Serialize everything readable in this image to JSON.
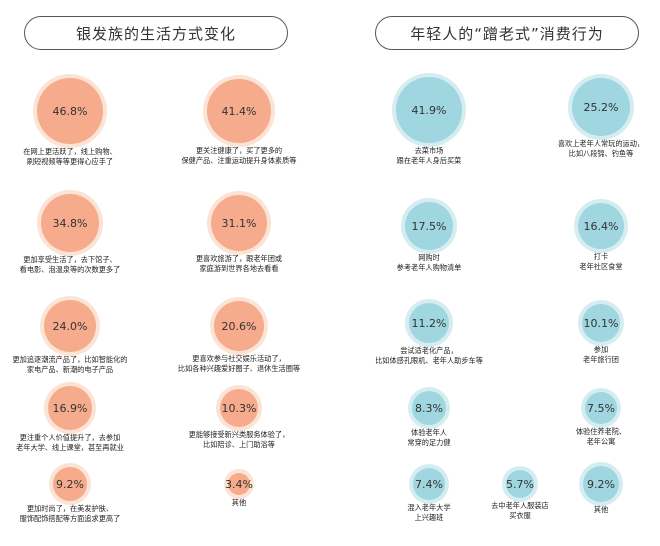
{
  "left_title": "银发族的生活方式变化",
  "right_title": "年轻人的“蹭老式”消费行为",
  "colors": {
    "left_fill": "#f5ab8c",
    "left_glow": "#fbe3d6",
    "right_fill": "#9fd6df",
    "right_glow": "#d5edf1"
  },
  "chart_data": [
    {
      "type": "bubble",
      "title": "银发族的生活方式变化",
      "unit": "%",
      "items": [
        {
          "value": 46.8,
          "label": "46.8%",
          "caption": [
            "在网上更活跃了，线上购物、",
            "刷短视频等等更得心应手了"
          ]
        },
        {
          "value": 41.4,
          "label": "41.4%",
          "caption": [
            "更关注健康了，买了更多的",
            "保健产品、注重运动提升身体素质等"
          ]
        },
        {
          "value": 34.8,
          "label": "34.8%",
          "caption": [
            "更加享受生活了，去下馆子、",
            "看电影、泡温泉等的次数更多了"
          ]
        },
        {
          "value": 31.1,
          "label": "31.1%",
          "caption": [
            "更喜欢旅游了，跟老年团或",
            "家庭游到世界各地去看看"
          ]
        },
        {
          "value": 24.0,
          "label": "24.0%",
          "caption": [
            "更加追逐潮流产品了，比如智能化的",
            "家电产品、新潮的电子产品"
          ]
        },
        {
          "value": 20.6,
          "label": "20.6%",
          "caption": [
            "更喜欢参与社交娱乐活动了，",
            "比如各种兴趣爱好圈子、退休生活圈等"
          ]
        },
        {
          "value": 16.9,
          "label": "16.9%",
          "caption": [
            "更注重个人价值提升了，去参加",
            "老年大学、线上课堂，甚至再就业"
          ]
        },
        {
          "value": 10.3,
          "label": "10.3%",
          "caption": [
            "更能够接受新兴类服务体验了，",
            "比如陪诊、上门助浴等"
          ]
        },
        {
          "value": 9.2,
          "label": "9.2%",
          "caption": [
            "更加时尚了，在美发护肤、",
            "服饰配饰搭配等方面追求更高了"
          ]
        },
        {
          "value": 3.4,
          "label": "3.4%",
          "caption": [
            "其他"
          ]
        }
      ]
    },
    {
      "type": "bubble",
      "title": "年轻人的“蹭老式”消费行为",
      "unit": "%",
      "items": [
        {
          "value": 41.9,
          "label": "41.9%",
          "caption": [
            "去菜市场",
            "跟在老年人身后买菜"
          ]
        },
        {
          "value": 25.2,
          "label": "25.2%",
          "caption": [
            "喜欢上老年人常玩的运动，",
            "比如八段锦、钓鱼等"
          ]
        },
        {
          "value": 17.5,
          "label": "17.5%",
          "caption": [
            "网购时",
            "参考老年人购物清单"
          ]
        },
        {
          "value": 16.4,
          "label": "16.4%",
          "caption": [
            "打卡",
            "老年社区食堂"
          ]
        },
        {
          "value": 11.2,
          "label": "11.2%",
          "caption": [
            "尝试适老化产品，",
            "比如体感孔眼机、老年人助步车等"
          ]
        },
        {
          "value": 10.1,
          "label": "10.1%",
          "caption": [
            "参加",
            "老年旅行团"
          ]
        },
        {
          "value": 8.3,
          "label": "8.3%",
          "caption": [
            "体验老年人",
            "常穿的足力健"
          ]
        },
        {
          "value": 7.5,
          "label": "7.5%",
          "caption": [
            "体验住养老院、",
            "老年公寓"
          ]
        },
        {
          "value": 7.4,
          "label": "7.4%",
          "caption": [
            "混入老年大学",
            "上兴趣班"
          ]
        },
        {
          "value": 5.7,
          "label": "5.7%",
          "caption": [
            "去中老年人服装店",
            "买衣服"
          ]
        },
        {
          "value": 9.2,
          "label": "9.2%",
          "caption": [
            "其他"
          ]
        }
      ]
    }
  ]
}
